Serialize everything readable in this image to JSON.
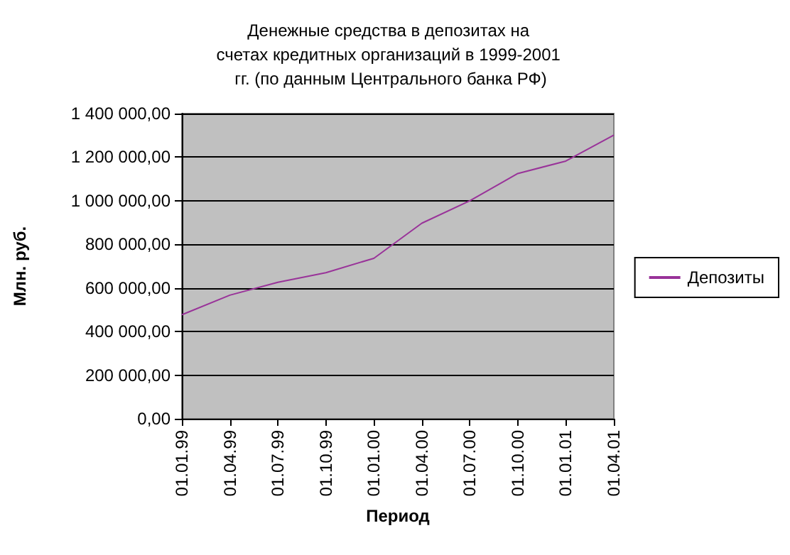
{
  "chart_data": {
    "type": "line",
    "title": "Денежные средства в депозитах на счетах кредитных организаций в 1999-2001 гг. (по данным Центрального банка РФ)",
    "xlabel": "Период",
    "ylabel": "Млн. руб.",
    "categories": [
      "01.01.99",
      "01.04.99",
      "01.07.99",
      "01.10.99",
      "01.01.00",
      "01.04.00",
      "01.07.00",
      "01.10.00",
      "01.01.01",
      "01.04.01"
    ],
    "series": [
      {
        "name": "Депозиты",
        "color": "#993399",
        "values": [
          477000,
          567000,
          626000,
          670000,
          736000,
          897000,
          1000000,
          1125000,
          1182000,
          1301000
        ]
      }
    ],
    "ylim": [
      0,
      1400000
    ],
    "yticks": [
      {
        "value": 0,
        "label": "0,00"
      },
      {
        "value": 200000,
        "label": "200 000,00"
      },
      {
        "value": 400000,
        "label": "400 000,00"
      },
      {
        "value": 600000,
        "label": "600 000,00"
      },
      {
        "value": 800000,
        "label": "800 000,00"
      },
      {
        "value": 1000000,
        "label": "1 000 000,00"
      },
      {
        "value": 1200000,
        "label": "1 200 000,00"
      },
      {
        "value": 1400000,
        "label": "1 400 000,00"
      }
    ],
    "grid": "y",
    "legend": "right",
    "marker": "none",
    "line_style": "solid"
  }
}
